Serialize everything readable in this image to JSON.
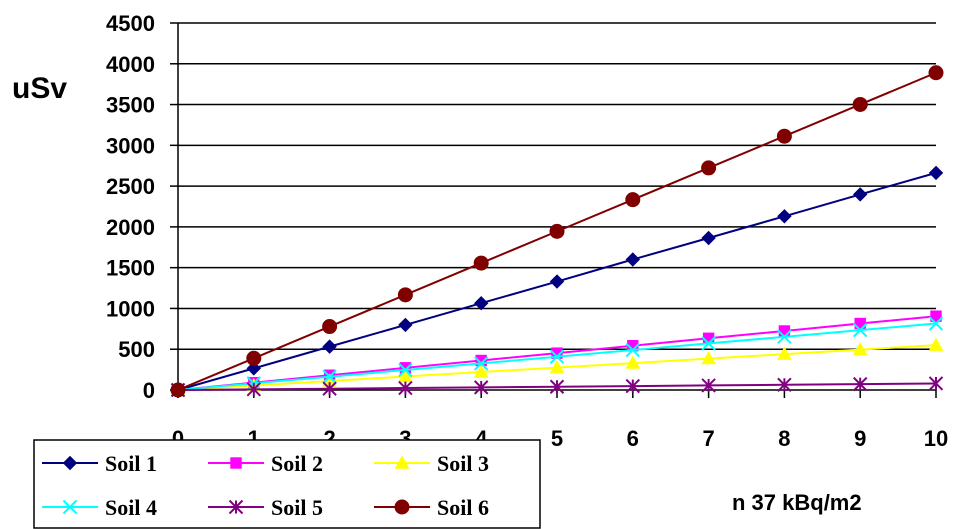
{
  "chart_data": {
    "type": "line",
    "ylabel": "uSv",
    "xlabel": "n 37 kBq/m2",
    "x": [
      0,
      1,
      2,
      3,
      4,
      5,
      6,
      7,
      8,
      9,
      10
    ],
    "xlim": [
      0,
      10
    ],
    "ylim": [
      0,
      4500
    ],
    "yticks": [
      0,
      500,
      1000,
      1500,
      2000,
      2500,
      3000,
      3500,
      4000,
      4500
    ],
    "grid": "horizontal",
    "legend_position": "bottom-left",
    "series": [
      {
        "name": "Soil 1",
        "color": "#000080",
        "marker": "diamond",
        "values": [
          0,
          265,
          532,
          798,
          1064,
          1330,
          1600,
          1864,
          2130,
          2398,
          2662
        ]
      },
      {
        "name": "Soil 2",
        "color": "#FF00FF",
        "marker": "square",
        "values": [
          0,
          90,
          181,
          272,
          362,
          452,
          543,
          634,
          724,
          815,
          905
        ]
      },
      {
        "name": "Soil 3",
        "color": "#FFFF00",
        "marker": "triangle",
        "values": [
          0,
          55,
          110,
          165,
          220,
          275,
          330,
          385,
          440,
          495,
          550
        ]
      },
      {
        "name": "Soil 4",
        "color": "#00FFFF",
        "marker": "x",
        "values": [
          0,
          82,
          163,
          245,
          326,
          408,
          490,
          571,
          652,
          734,
          815
        ]
      },
      {
        "name": "Soil 5",
        "color": "#800080",
        "marker": "star",
        "values": [
          0,
          8,
          16,
          24,
          32,
          40,
          48,
          56,
          64,
          72,
          80
        ]
      },
      {
        "name": "Soil 6",
        "color": "#800000",
        "marker": "circle",
        "values": [
          0,
          389,
          778,
          1167,
          1556,
          1945,
          2334,
          2723,
          3112,
          3501,
          3890
        ]
      }
    ]
  }
}
